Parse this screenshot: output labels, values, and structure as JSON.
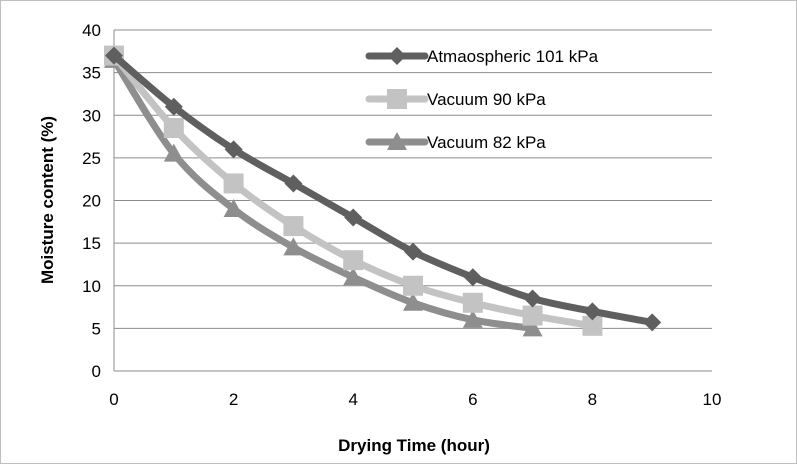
{
  "chart_data": {
    "type": "line",
    "title": "",
    "xlabel": "Drying Time (hour)",
    "ylabel": "Moisture content (%)",
    "xlim": [
      0,
      10
    ],
    "ylim": [
      0,
      40
    ],
    "x_ticks": [
      0,
      2,
      4,
      6,
      8,
      10
    ],
    "y_ticks": [
      0,
      5,
      10,
      15,
      20,
      25,
      30,
      35,
      40
    ],
    "grid": "horizontal",
    "legend_position": "top-right",
    "series": [
      {
        "name": "Atmaospheric 101 kPa",
        "marker": "diamond",
        "color": "#5f5f5f",
        "x": [
          0,
          1,
          2,
          3,
          4,
          5,
          6,
          7,
          8,
          9
        ],
        "y": [
          37,
          31,
          26,
          22,
          18,
          14,
          11,
          8.5,
          7,
          5.7
        ]
      },
      {
        "name": "Vacuum 90 kPa",
        "marker": "square",
        "color": "#c3c3c3",
        "x": [
          0,
          1,
          2,
          3,
          4,
          5,
          6,
          7,
          8
        ],
        "y": [
          37,
          28.5,
          22,
          17,
          13,
          10,
          8,
          6.5,
          5.3
        ]
      },
      {
        "name": "Vacuum 82 kPa",
        "marker": "triangle",
        "color": "#8e8e8e",
        "x": [
          0,
          1,
          2,
          3,
          4,
          5,
          6,
          7
        ],
        "y": [
          36.5,
          25.5,
          19,
          14.5,
          11,
          8,
          6,
          5
        ]
      }
    ]
  }
}
